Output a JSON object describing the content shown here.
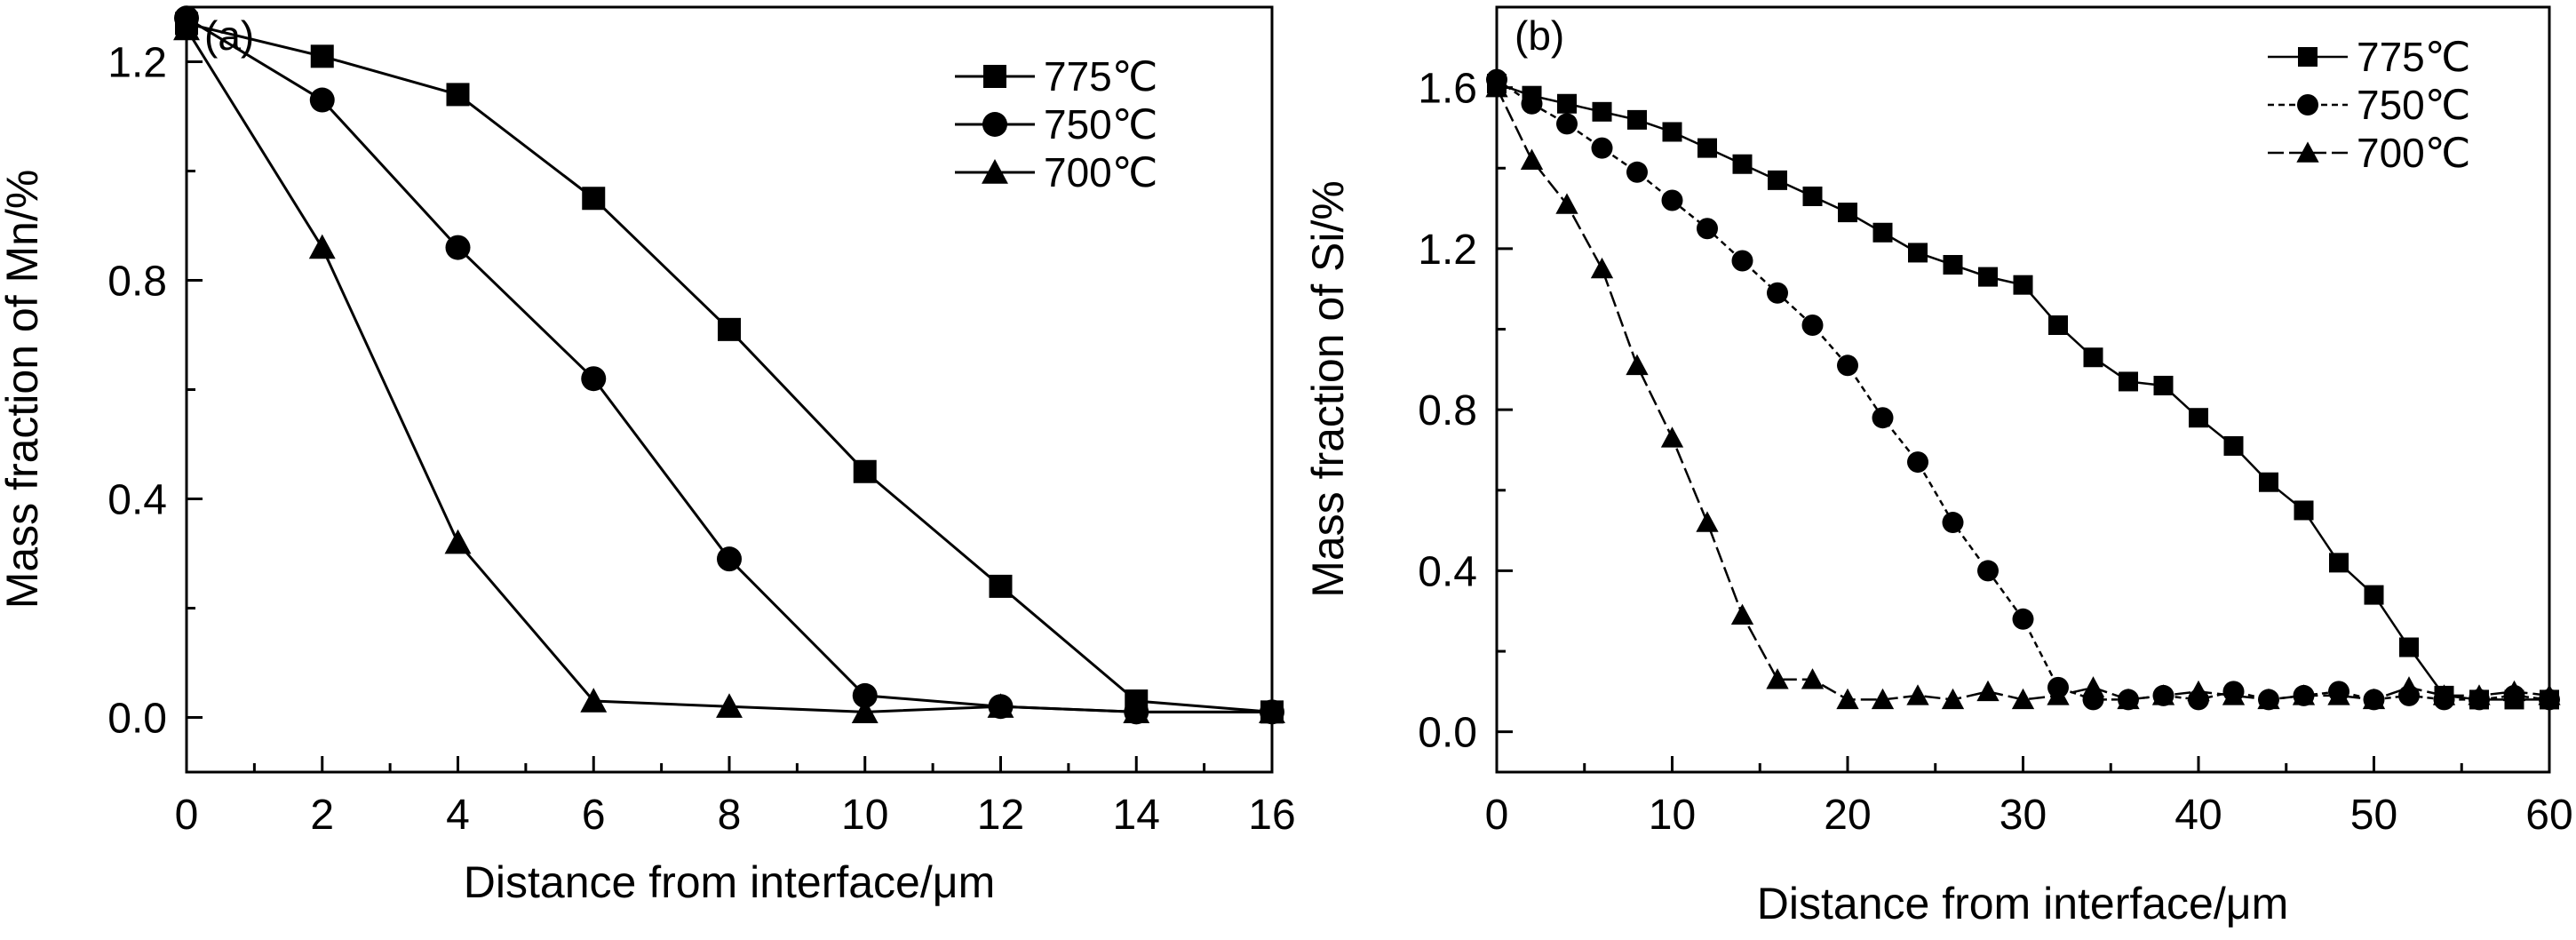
{
  "chart_data": [
    {
      "panel_label": "(a)",
      "type": "line",
      "xlabel": "Distance from interface/μm",
      "ylabel": "Mass fraction of Mn/%",
      "xlim": [
        0,
        16
      ],
      "ylim": [
        -0.1,
        1.3
      ],
      "xticks": [
        0,
        2,
        4,
        6,
        8,
        10,
        12,
        14,
        16
      ],
      "yticks": [
        0.0,
        0.4,
        0.8,
        1.2
      ],
      "xtick_labels": [
        "0",
        "2",
        "4",
        "6",
        "8",
        "10",
        "12",
        "14",
        "16"
      ],
      "ytick_labels": [
        "0.0",
        "0.4",
        "0.8",
        "1.2"
      ],
      "series": [
        {
          "name": "775℃",
          "marker": "square",
          "x": [
            0,
            2,
            4,
            6,
            8,
            10,
            12,
            14,
            16
          ],
          "y": [
            1.27,
            1.21,
            1.14,
            0.95,
            0.71,
            0.45,
            0.24,
            0.03,
            0.01
          ]
        },
        {
          "name": "750℃",
          "marker": "circle",
          "x": [
            0,
            2,
            4,
            6,
            8,
            10,
            12,
            14,
            16
          ],
          "y": [
            1.28,
            1.13,
            0.86,
            0.62,
            0.29,
            0.04,
            0.02,
            0.01,
            0.01
          ]
        },
        {
          "name": "700℃",
          "marker": "triangle",
          "x": [
            0,
            2,
            4,
            6,
            8,
            10,
            12,
            14,
            16
          ],
          "y": [
            1.26,
            0.86,
            0.32,
            0.03,
            0.02,
            0.01,
            0.02,
            0.01,
            0.01
          ]
        }
      ],
      "legend": "top-right"
    },
    {
      "panel_label": "(b)",
      "type": "line",
      "xlabel": "Distance from interface/μm",
      "ylabel": "Mass fraction of Si/%",
      "xlim": [
        0,
        60
      ],
      "ylim": [
        -0.1,
        1.8
      ],
      "xticks": [
        0,
        10,
        20,
        30,
        40,
        50,
        60
      ],
      "yticks": [
        0.0,
        0.4,
        0.8,
        1.2,
        1.6
      ],
      "xtick_labels": [
        "0",
        "10",
        "20",
        "30",
        "40",
        "50",
        "60"
      ],
      "ytick_labels": [
        "0.0",
        "0.4",
        "0.8",
        "1.2",
        "1.6"
      ],
      "series": [
        {
          "name": "775℃",
          "marker": "square",
          "x": [
            0,
            2,
            4,
            6,
            8,
            10,
            12,
            14,
            16,
            18,
            20,
            22,
            24,
            26,
            28,
            30,
            32,
            34,
            36,
            38,
            40,
            42,
            44,
            46,
            48,
            50,
            52,
            54,
            56,
            58,
            60
          ],
          "y": [
            1.61,
            1.58,
            1.56,
            1.54,
            1.52,
            1.49,
            1.45,
            1.41,
            1.37,
            1.33,
            1.29,
            1.24,
            1.19,
            1.16,
            1.13,
            1.11,
            1.01,
            0.93,
            0.87,
            0.86,
            0.78,
            0.71,
            0.62,
            0.55,
            0.42,
            0.34,
            0.21,
            0.09,
            0.08,
            0.08,
            0.08
          ]
        },
        {
          "name": "750℃",
          "marker": "circle",
          "x": [
            0,
            2,
            4,
            6,
            8,
            10,
            12,
            14,
            16,
            18,
            20,
            22,
            24,
            26,
            28,
            30,
            32,
            34,
            36,
            38,
            40,
            42,
            44,
            46,
            48,
            50,
            52,
            54,
            56,
            58,
            60
          ],
          "y": [
            1.62,
            1.56,
            1.51,
            1.45,
            1.39,
            1.32,
            1.25,
            1.17,
            1.09,
            1.01,
            0.91,
            0.78,
            0.67,
            0.52,
            0.4,
            0.28,
            0.11,
            0.08,
            0.08,
            0.09,
            0.08,
            0.1,
            0.08,
            0.09,
            0.1,
            0.08,
            0.09,
            0.08,
            0.08,
            0.09,
            0.08
          ]
        },
        {
          "name": "700℃",
          "marker": "triangle",
          "x": [
            0,
            2,
            4,
            6,
            8,
            10,
            12,
            14,
            16,
            18,
            20,
            22,
            24,
            26,
            28,
            30,
            32,
            34,
            36,
            38,
            40,
            42,
            44,
            46,
            48,
            50,
            52,
            54,
            56,
            58,
            60
          ],
          "y": [
            1.6,
            1.42,
            1.31,
            1.15,
            0.91,
            0.73,
            0.52,
            0.29,
            0.13,
            0.13,
            0.08,
            0.08,
            0.09,
            0.08,
            0.1,
            0.08,
            0.09,
            0.11,
            0.08,
            0.09,
            0.1,
            0.09,
            0.08,
            0.09,
            0.09,
            0.08,
            0.11,
            0.09,
            0.09,
            0.1,
            0.09
          ]
        }
      ],
      "legend": "top-right"
    }
  ]
}
